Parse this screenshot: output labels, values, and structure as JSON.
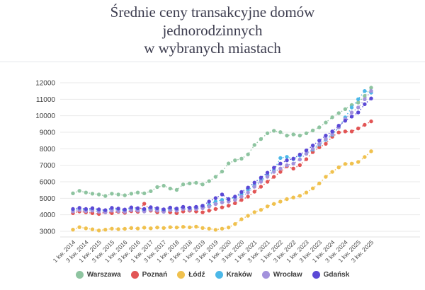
{
  "title": {
    "line1": "Średnie ceny transakcyjne domów",
    "line2": "jednorodzinnych",
    "line3": "w wybranych miastach"
  },
  "chart_data": {
    "type": "line",
    "style": "dotted markers with dashed connecting lines",
    "title": "Średnie ceny transakcyjne domów jednorodzinnych w wybranych miastach",
    "xlabel": "",
    "ylabel": "",
    "ylim": [
      3000,
      12000
    ],
    "grid": "horizontal",
    "legend_position": "bottom",
    "y_tick_labels": [
      "3000",
      "4000",
      "5000",
      "6000",
      "7000",
      "8000",
      "9000",
      "10000",
      "11000",
      "12000"
    ],
    "x_tick_labels": [
      "1 kw. 2014",
      "3 kw. 2014",
      "1 kw. 2015",
      "3 kw. 2015",
      "1 kw. 2016",
      "3 kw. 2016",
      "1 kw. 2017",
      "3 kw. 2017",
      "1 kw. 2018",
      "3 kw. 2018",
      "1 kw. 2019",
      "3 kw. 2019",
      "1 kw. 2020",
      "3 kw. 2020",
      "1 kw. 2021",
      "3 kw. 2021",
      "1 kw. 2022",
      "3 kw. 2022",
      "1 kw. 2023",
      "3 kw. 2023",
      "1 kw. 2024",
      "3 kw. 2024",
      "1 kw. 2025",
      "3 kw. 2025"
    ],
    "x_quarters_per_tick": 2,
    "quarters_total": 47,
    "series": [
      {
        "name": "Warszawa",
        "color": "#8ec4a0",
        "values": [
          5300,
          5450,
          5350,
          5280,
          5230,
          5140,
          5280,
          5230,
          5180,
          5280,
          5350,
          5300,
          5430,
          5680,
          5760,
          5590,
          5510,
          5840,
          5900,
          5940,
          5840,
          6040,
          6300,
          6620,
          7110,
          7300,
          7400,
          7660,
          8230,
          8590,
          8940,
          9090,
          9010,
          8800,
          8870,
          8800,
          8940,
          9110,
          9300,
          9590,
          9910,
          10160,
          10400,
          10650,
          10800,
          11200,
          11700
        ]
      },
      {
        "name": "Poznań",
        "color": "#e25555",
        "values": [
          4100,
          4200,
          4150,
          4100,
          4050,
          4150,
          4100,
          4180,
          4120,
          4220,
          4180,
          4670,
          4250,
          4150,
          4200,
          4150,
          4100,
          4200,
          4250,
          4200,
          4150,
          4250,
          4350,
          4450,
          4550,
          4700,
          4900,
          5100,
          5400,
          5700,
          6000,
          6300,
          6600,
          6940,
          6800,
          7010,
          7370,
          7800,
          8090,
          8300,
          8730,
          8990,
          9050,
          9050,
          9230,
          9450,
          9660
        ]
      },
      {
        "name": "Łódź",
        "color": "#f0c14e",
        "values": [
          3100,
          3250,
          3180,
          3120,
          3050,
          3100,
          3160,
          3130,
          3150,
          3200,
          3170,
          3220,
          3180,
          3230,
          3200,
          3250,
          3230,
          3270,
          3240,
          3280,
          3200,
          3160,
          3090,
          3160,
          3230,
          3440,
          3730,
          3940,
          4160,
          4300,
          4510,
          4660,
          4800,
          4950,
          5050,
          5150,
          5350,
          5600,
          5900,
          6300,
          6600,
          6870,
          7080,
          7100,
          7200,
          7500,
          7850
        ]
      },
      {
        "name": "Kraków",
        "color": "#4cb8e8",
        "values": [
          4300,
          4350,
          4280,
          4330,
          4280,
          4230,
          4350,
          4300,
          4250,
          4380,
          4320,
          4280,
          4380,
          4300,
          4250,
          4350,
          4300,
          4400,
          4350,
          4400,
          4450,
          4600,
          4800,
          4900,
          4950,
          5050,
          5250,
          5500,
          5800,
          6100,
          6400,
          6700,
          7440,
          7510,
          7370,
          7590,
          7700,
          7950,
          8250,
          8550,
          8850,
          9300,
          9900,
          10500,
          11000,
          11500,
          11400
        ]
      },
      {
        "name": "Wrocław",
        "color": "#a392dc",
        "values": [
          4200,
          4280,
          4220,
          4250,
          4180,
          4150,
          4250,
          4220,
          4180,
          4280,
          4250,
          4200,
          4300,
          4250,
          4180,
          4280,
          4250,
          4350,
          4300,
          4350,
          4400,
          4500,
          4650,
          4750,
          4800,
          4900,
          5100,
          5350,
          5700,
          6000,
          6300,
          6600,
          6800,
          7000,
          7100,
          7350,
          7700,
          8000,
          8300,
          8600,
          8900,
          9300,
          9800,
          10200,
          10500,
          11000,
          11500
        ]
      },
      {
        "name": "Gdańsk",
        "color": "#5b49d6",
        "values": [
          4350,
          4420,
          4350,
          4400,
          4330,
          4280,
          4420,
          4380,
          4320,
          4450,
          4400,
          4350,
          4460,
          4400,
          4330,
          4440,
          4380,
          4480,
          4430,
          4480,
          4550,
          4800,
          5010,
          5230,
          4950,
          5100,
          5380,
          5650,
          5950,
          6250,
          6550,
          6850,
          7100,
          7300,
          7400,
          7650,
          7900,
          8200,
          8500,
          8800,
          9050,
          9400,
          9700,
          9950,
          10200,
          10700,
          11050
        ]
      }
    ]
  }
}
